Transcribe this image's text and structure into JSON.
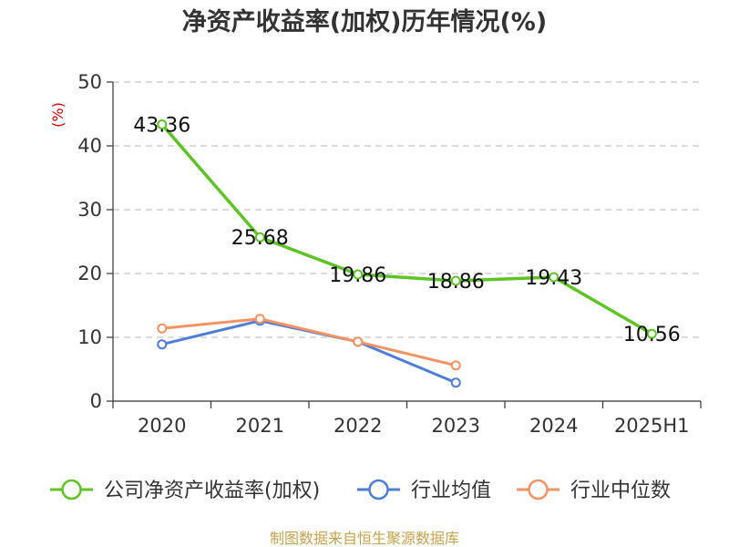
{
  "title": "净资产收益率(加权)历年情况(%)",
  "source": "制图数据来自恒生聚源数据库",
  "chart_data": {
    "type": "line",
    "title": "净资产收益率(加权)历年情况(%)",
    "ylabel": "(%)",
    "categories": [
      "2020",
      "2021",
      "2022",
      "2023",
      "2024",
      "2025H1"
    ],
    "ylim": [
      0,
      50
    ],
    "yticks": [
      0,
      10,
      20,
      30,
      40,
      50
    ],
    "grid": true,
    "legend_position": "bottom",
    "series": [
      {
        "name": "公司净资产收益率(加权)",
        "color": "#5dc424",
        "values": [
          43.36,
          25.68,
          19.86,
          18.86,
          19.43,
          10.56
        ],
        "labels": [
          "43.36",
          "25.68",
          "19.86",
          "18.86",
          "19.43",
          "10.56"
        ]
      },
      {
        "name": "行业均值",
        "color": "#4e7ed8",
        "values": [
          8.9,
          12.6,
          9.3,
          2.9,
          null,
          null
        ]
      },
      {
        "name": "行业中位数",
        "color": "#f59262",
        "values": [
          11.4,
          12.9,
          9.3,
          5.6,
          null,
          null
        ]
      }
    ]
  }
}
